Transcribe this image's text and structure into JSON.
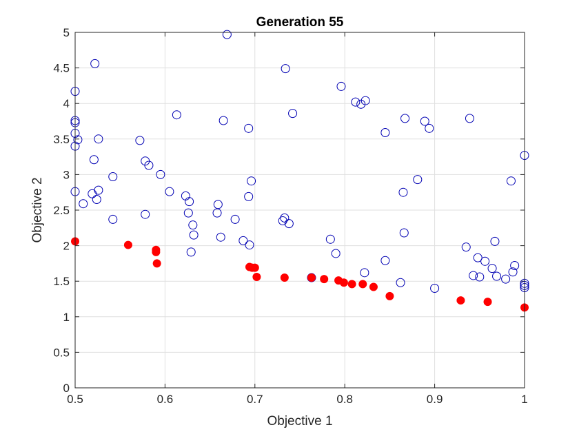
{
  "chart_data": {
    "type": "scatter",
    "title": "Generation 55",
    "xlabel": "Objective 1",
    "ylabel": "Objective 2",
    "xlim": [
      0.5,
      1
    ],
    "ylim": [
      0,
      5
    ],
    "xticks": [
      0.5,
      0.6,
      0.7,
      0.8,
      0.9,
      1
    ],
    "xtick_labels": [
      "0.5",
      "0.6",
      "0.7",
      "0.8",
      "0.9",
      "1"
    ],
    "yticks": [
      0,
      0.5,
      1,
      1.5,
      2,
      2.5,
      3,
      3.5,
      4,
      4.5,
      5
    ],
    "ytick_labels": [
      "0",
      "0.5",
      "1",
      "1.5",
      "2",
      "2.5",
      "3",
      "3.5",
      "4",
      "4.5",
      "5"
    ],
    "grid": true,
    "series": [
      {
        "marker": "open-circle",
        "color": "#0000b3",
        "points": [
          [
            0.669,
            4.97
          ],
          [
            0.522,
            4.56
          ],
          [
            0.734,
            4.49
          ],
          [
            0.5,
            4.17
          ],
          [
            0.796,
            4.24
          ],
          [
            0.812,
            4.02
          ],
          [
            0.823,
            4.04
          ],
          [
            0.818,
            3.99
          ],
          [
            0.742,
            3.86
          ],
          [
            0.613,
            3.84
          ],
          [
            0.665,
            3.76
          ],
          [
            0.5,
            3.76
          ],
          [
            0.5,
            3.73
          ],
          [
            0.867,
            3.79
          ],
          [
            0.889,
            3.75
          ],
          [
            0.939,
            3.79
          ],
          [
            0.894,
            3.65
          ],
          [
            0.693,
            3.65
          ],
          [
            0.845,
            3.59
          ],
          [
            0.5,
            3.58
          ],
          [
            0.526,
            3.5
          ],
          [
            0.503,
            3.49
          ],
          [
            0.572,
            3.48
          ],
          [
            0.5,
            3.4
          ],
          [
            0.521,
            3.21
          ],
          [
            0.578,
            3.19
          ],
          [
            0.582,
            3.13
          ],
          [
            1.0,
            3.27
          ],
          [
            0.595,
            3.0
          ],
          [
            0.542,
            2.97
          ],
          [
            0.696,
            2.91
          ],
          [
            0.881,
            2.93
          ],
          [
            0.985,
            2.91
          ],
          [
            0.5,
            2.76
          ],
          [
            0.526,
            2.78
          ],
          [
            0.605,
            2.76
          ],
          [
            0.519,
            2.73
          ],
          [
            0.865,
            2.75
          ],
          [
            0.623,
            2.7
          ],
          [
            0.524,
            2.65
          ],
          [
            0.693,
            2.69
          ],
          [
            0.627,
            2.62
          ],
          [
            0.659,
            2.58
          ],
          [
            0.509,
            2.59
          ],
          [
            0.626,
            2.46
          ],
          [
            0.658,
            2.46
          ],
          [
            0.578,
            2.44
          ],
          [
            0.542,
            2.37
          ],
          [
            0.678,
            2.37
          ],
          [
            0.733,
            2.39
          ],
          [
            0.731,
            2.35
          ],
          [
            0.738,
            2.31
          ],
          [
            0.631,
            2.29
          ],
          [
            0.866,
            2.18
          ],
          [
            0.632,
            2.15
          ],
          [
            0.662,
            2.12
          ],
          [
            0.784,
            2.09
          ],
          [
            0.687,
            2.07
          ],
          [
            0.694,
            2.01
          ],
          [
            0.967,
            2.06
          ],
          [
            0.935,
            1.98
          ],
          [
            0.629,
            1.91
          ],
          [
            0.79,
            1.89
          ],
          [
            0.948,
            1.83
          ],
          [
            0.956,
            1.78
          ],
          [
            0.845,
            1.79
          ],
          [
            0.989,
            1.72
          ],
          [
            0.964,
            1.68
          ],
          [
            0.987,
            1.63
          ],
          [
            0.822,
            1.62
          ],
          [
            0.943,
            1.58
          ],
          [
            0.969,
            1.57
          ],
          [
            0.95,
            1.56
          ],
          [
            0.979,
            1.53
          ],
          [
            0.763,
            1.55
          ],
          [
            0.862,
            1.48
          ],
          [
            1.0,
            1.47
          ],
          [
            1.0,
            1.44
          ],
          [
            1.0,
            1.41
          ],
          [
            0.9,
            1.4
          ]
        ]
      },
      {
        "marker": "filled-circle",
        "color": "#ff0000",
        "points": [
          [
            0.5,
            2.06
          ],
          [
            0.559,
            2.01
          ],
          [
            0.59,
            1.94
          ],
          [
            0.59,
            1.91
          ],
          [
            0.591,
            1.75
          ],
          [
            0.694,
            1.7
          ],
          [
            0.697,
            1.69
          ],
          [
            0.7,
            1.69
          ],
          [
            0.702,
            1.56
          ],
          [
            0.733,
            1.55
          ],
          [
            0.763,
            1.55
          ],
          [
            0.777,
            1.53
          ],
          [
            0.793,
            1.51
          ],
          [
            0.799,
            1.48
          ],
          [
            0.808,
            1.46
          ],
          [
            0.82,
            1.46
          ],
          [
            0.832,
            1.42
          ],
          [
            0.85,
            1.29
          ],
          [
            0.929,
            1.23
          ],
          [
            0.959,
            1.21
          ],
          [
            1.0,
            1.13
          ]
        ]
      }
    ]
  }
}
